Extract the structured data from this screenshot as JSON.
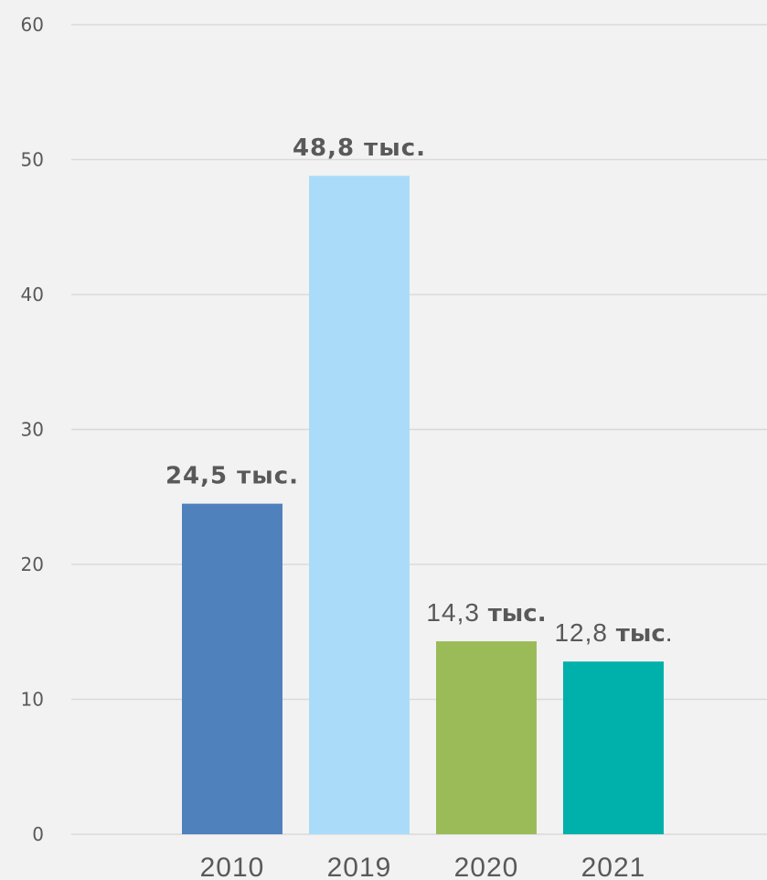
{
  "chart_data": {
    "type": "bar",
    "categories": [
      "2010",
      "2019",
      "2020",
      "2021"
    ],
    "values": [
      24.5,
      48.8,
      14.3,
      12.8
    ],
    "colors": [
      "#4f81bd",
      "#aadcfa",
      "#9bbb59",
      "#00b0aa"
    ],
    "data_labels": [
      {
        "number": "24,5",
        "unit": "тыс.",
        "suffix": "",
        "style": "bold"
      },
      {
        "number": "48,8",
        "unit": "тыс.",
        "suffix": "",
        "style": "bold"
      },
      {
        "number": "14,3",
        "unit": "тыс.",
        "suffix": "",
        "style": "mixed"
      },
      {
        "number": "12,8",
        "unit": "тыс",
        "suffix": ".",
        "style": "mixed"
      }
    ],
    "y_ticks": [
      "0",
      "10",
      "20",
      "30",
      "40",
      "50",
      "60"
    ],
    "ylim": [
      0,
      60
    ],
    "grid": true,
    "legend": "none",
    "title": "",
    "xlabel": "",
    "ylabel": ""
  }
}
